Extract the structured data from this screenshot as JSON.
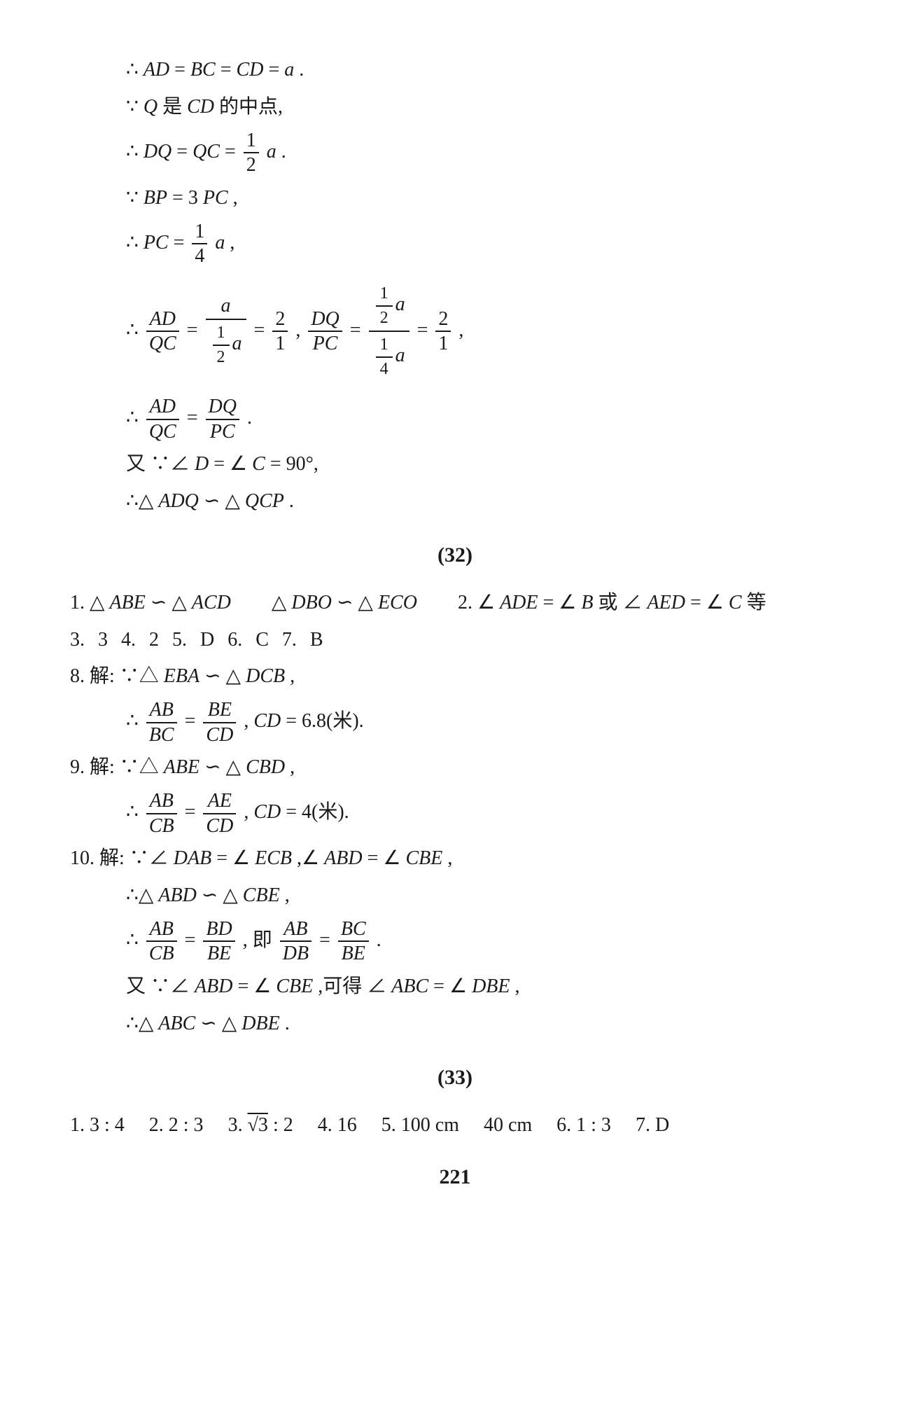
{
  "proof": {
    "l1_a": "∴",
    "l1_b": "AD",
    "l1_c": " = ",
    "l1_d": "BC",
    "l1_e": " = ",
    "l1_f": "CD",
    "l1_g": " = ",
    "l1_h": "a",
    "l1_i": ".",
    "l2_a": "∵",
    "l2_b": "Q",
    "l2_c": " 是 ",
    "l2_d": "CD",
    "l2_e": " 的中点,",
    "l3_a": "∴",
    "l3_b": "DQ",
    "l3_c": " = ",
    "l3_d": "QC",
    "l3_e": " = ",
    "l3_f_num": "1",
    "l3_f_den": "2",
    "l3_g": "a",
    "l3_h": ".",
    "l4_a": "∵",
    "l4_b": "BP",
    "l4_c": " = 3",
    "l4_d": "PC",
    "l4_e": ",",
    "l5_a": "∴",
    "l5_b": "PC",
    "l5_c": " = ",
    "l5_d_num": "1",
    "l5_d_den": "4",
    "l5_e": "a",
    "l5_f": ",",
    "l6_a": "∴ ",
    "l6_f1_num": "AD",
    "l6_f1_den": "QC",
    "l6_eq1": " = ",
    "l6_f2_num": "a",
    "l6_f2_den_num": "1",
    "l6_f2_den_den": "2",
    "l6_f2_den_a": "a",
    "l6_eq2": " = ",
    "l6_f3_num": "2",
    "l6_f3_den": "1",
    "l6_comma": " , ",
    "l6_f4_num": "DQ",
    "l6_f4_den": "PC",
    "l6_eq3": " = ",
    "l6_f5_num_num": "1",
    "l6_f5_num_den": "2",
    "l6_f5_num_a": "a",
    "l6_f5_den_num": "1",
    "l6_f5_den_den": "4",
    "l6_f5_den_a": "a",
    "l6_eq4": " = ",
    "l6_f6_num": "2",
    "l6_f6_den": "1",
    "l6_end": " ,",
    "l7_a": "∴ ",
    "l7_f1_num": "AD",
    "l7_f1_den": "QC",
    "l7_eq": " = ",
    "l7_f2_num": "DQ",
    "l7_f2_den": "PC",
    "l7_end": ".",
    "l8_a": "又 ∵∠",
    "l8_b": "D",
    "l8_c": " = ∠",
    "l8_d": "C",
    "l8_e": " = 90°,",
    "l9_a": "∴△",
    "l9_b": "ADQ",
    "l9_c": " ∽ △",
    "l9_d": "QCP",
    "l9_e": "."
  },
  "sec32": {
    "head": "(32)",
    "r1_a": "1. △",
    "r1_b": "ABE",
    "r1_c": " ∽ △",
    "r1_d": "ACD",
    "r1_e": "△",
    "r1_f": "DBO",
    "r1_g": " ∽ △",
    "r1_h": "ECO",
    "r1_i": "2. ∠",
    "r1_j": "ADE",
    "r1_k": " = ∠",
    "r1_l": "B",
    "r1_m": " 或 ∠",
    "r1_n": "AED",
    "r1_o": " = ∠",
    "r1_p": "C",
    "r1_q": " 等",
    "r2": "3. 3   4. 2   5. D   6. C   7. B",
    "r3_a": "8. 解: ∵△",
    "r3_b": "EBA",
    "r3_c": " ∽ △",
    "r3_d": "DCB",
    "r3_e": ",",
    "r3b_a": "∴ ",
    "r3b_f1_num": "AB",
    "r3b_f1_den": "BC",
    "r3b_eq": " = ",
    "r3b_f2_num": "BE",
    "r3b_f2_den": "CD",
    "r3b_c": ",",
    "r3b_d": "CD",
    "r3b_e": " = 6.8(米).",
    "r4_a": "9. 解: ∵△",
    "r4_b": "ABE",
    "r4_c": " ∽ △",
    "r4_d": "CBD",
    "r4_e": ",",
    "r4b_a": "∴ ",
    "r4b_f1_num": "AB",
    "r4b_f1_den": "CB",
    "r4b_eq": " = ",
    "r4b_f2_num": "AE",
    "r4b_f2_den": "CD",
    "r4b_c": ",",
    "r4b_d": "CD",
    "r4b_e": " = 4(米).",
    "r5_a": "10. 解: ∵∠",
    "r5_b": "DAB",
    "r5_c": " = ∠",
    "r5_d": "ECB",
    "r5_e": ",∠",
    "r5_f": "ABD",
    "r5_g": " = ∠",
    "r5_h": "CBE",
    "r5_i": ",",
    "r5b_a": "∴△",
    "r5b_b": "ABD",
    "r5b_c": " ∽ △",
    "r5b_d": "CBE",
    "r5b_e": ",",
    "r5c_a": "∴ ",
    "r5c_f1_num": "AB",
    "r5c_f1_den": "CB",
    "r5c_eq1": " = ",
    "r5c_f2_num": "BD",
    "r5c_f2_den": "BE",
    "r5c_m": ", 即",
    "r5c_f3_num": "AB",
    "r5c_f3_den": "DB",
    "r5c_eq2": " = ",
    "r5c_f4_num": "BC",
    "r5c_f4_den": "BE",
    "r5c_end": ".",
    "r5d_a": "又 ∵∠",
    "r5d_b": "ABD",
    "r5d_c": " = ∠",
    "r5d_d": "CBE",
    "r5d_e": ",可得 ∠",
    "r5d_f": "ABC",
    "r5d_g": " = ∠",
    "r5d_h": "DBE",
    "r5d_i": ",",
    "r5e_a": "∴△",
    "r5e_b": "ABC",
    "r5e_c": " ∽ △",
    "r5e_d": "DBE",
    "r5e_e": "."
  },
  "sec33": {
    "head": "(33)",
    "r1_a": "1. 3 : 4",
    "r1_b": "2. 2 : 3",
    "r1_c1": "3. ",
    "r1_c2": "√3",
    "r1_c3": " : 2",
    "r1_d": "4. 16",
    "r1_e": "5. 100 cm",
    "r1_f": "40 cm",
    "r1_g": "6. 1 : 3",
    "r1_h": "7. D"
  },
  "pageno": "221"
}
